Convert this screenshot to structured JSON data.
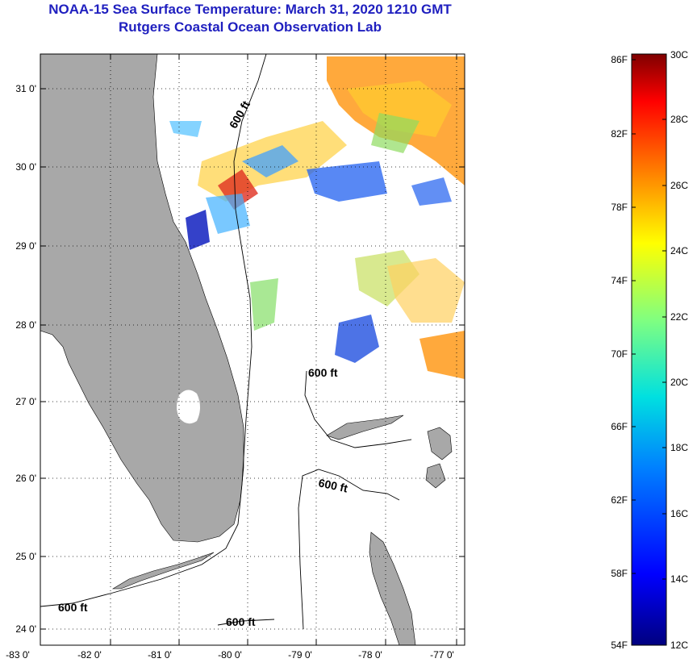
{
  "title": {
    "line1": "NOAA-15 Sea Surface Temperature:  March 31, 2020 1210 GMT",
    "line2": "Rutgers Coastal Ocean Observation Lab"
  },
  "axes": {
    "lat_labels": [
      "31 0'",
      "30 0'",
      "29 0'",
      "28 0'",
      "27 0'",
      "26 0'",
      "25 0'",
      "24 0'"
    ],
    "lon_labels": [
      "-83 0'",
      "-82 0'",
      "-81 0'",
      "-80 0'",
      "-79 0'",
      "-78 0'",
      "-77 0'"
    ]
  },
  "contours": {
    "label": "600 ft",
    "labels": [
      "600 ft",
      "600 ft",
      "600 ft",
      "600 ft",
      "600 ft"
    ]
  },
  "colorbar": {
    "fahrenheit": [
      "86F",
      "82F",
      "78F",
      "74F",
      "70F",
      "66F",
      "62F",
      "58F",
      "54F"
    ],
    "celsius": [
      "30C",
      "28C",
      "26C",
      "24C",
      "22C",
      "20C",
      "18C",
      "16C",
      "14C",
      "12C"
    ]
  },
  "colors": {
    "title": "#1f1fbf",
    "land": "#a8a8a8"
  }
}
